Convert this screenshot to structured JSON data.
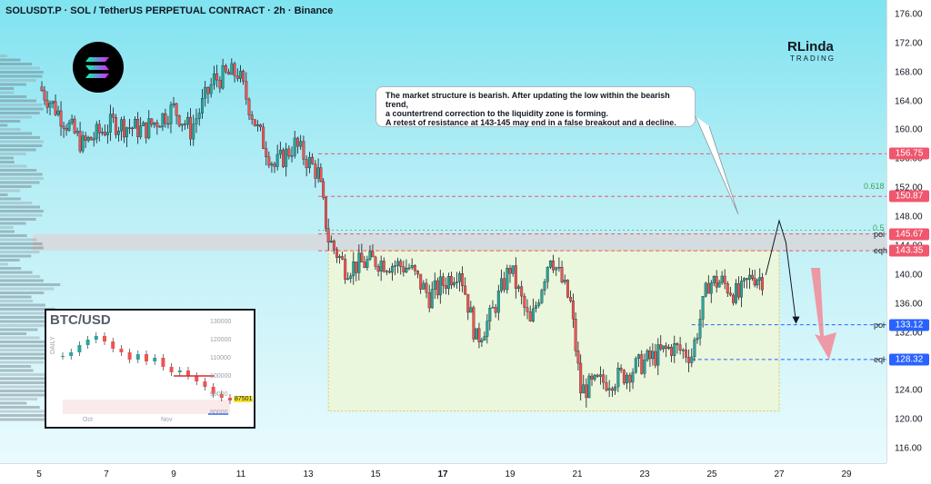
{
  "header": {
    "title": "SOLUSDT.P · SOL / TetherUS PERPETUAL CONTRACT · 2h · Binance"
  },
  "brand": {
    "line1": "RLinda",
    "line2": "TRADING"
  },
  "note": {
    "text_lines": [
      "The market structure is bearish. After updating the low within the bearish trend,",
      "a countertrend correction to the liquidity zone is forming.",
      "A retest of resistance at 143-145 may end in a false breakout and a decline."
    ]
  },
  "colors": {
    "bull": "#26a69a",
    "bear": "#ef5350",
    "level_red": "#f0566d",
    "level_blue": "#2962ff",
    "zone_fill": "#eaf7dc",
    "poi_band": "#d7d9dc"
  },
  "icons": {
    "logo": "solana-logo-icon",
    "arrow_down": "red-down-arrow-icon"
  },
  "chart_data": {
    "type": "candlestick",
    "title": "SOLUSDT.P · SOL / TetherUS PERPETUAL CONTRACT · 2h · Binance",
    "ylim": [
      114,
      178
    ],
    "y_ticks": [
      "176.00",
      "172.00",
      "168.00",
      "164.00",
      "160.00",
      "156.00",
      "152.00",
      "148.00",
      "144.00",
      "140.00",
      "136.00",
      "132.00",
      "128.00",
      "124.00",
      "120.00",
      "116.00"
    ],
    "x_ticks": [
      "5",
      "7",
      "9",
      "11",
      "13",
      "15",
      "17",
      "19",
      "21",
      "23",
      "25",
      "27",
      "29"
    ],
    "x_ticks_bold": [
      "17"
    ],
    "levels": [
      {
        "label": "156.75",
        "value": 156.75,
        "color": "red"
      },
      {
        "label": "150.87",
        "value": 150.87,
        "color": "red",
        "name": "0.618"
      },
      {
        "label": "145.67",
        "value": 145.67,
        "color": "red",
        "name": "poi"
      },
      {
        "label": "143.35",
        "value": 143.35,
        "color": "red",
        "name": "eqh"
      },
      {
        "label": "133.12",
        "value": 133.12,
        "color": "blue",
        "name": "poi"
      },
      {
        "label": "128.32",
        "value": 128.32,
        "color": "blue",
        "name": "eql"
      }
    ],
    "fib_labels": [
      {
        "label": "0.5",
        "value": 146.2
      }
    ],
    "key_points": [
      {
        "x": 5.0,
        "y": 166
      },
      {
        "x": 6.3,
        "y": 158
      },
      {
        "x": 7.2,
        "y": 161
      },
      {
        "x": 8.1,
        "y": 160
      },
      {
        "x": 9.0,
        "y": 163
      },
      {
        "x": 9.5,
        "y": 160
      },
      {
        "x": 10.2,
        "y": 167
      },
      {
        "x": 10.9,
        "y": 168
      },
      {
        "x": 11.5,
        "y": 160
      },
      {
        "x": 12.0,
        "y": 155
      },
      {
        "x": 12.6,
        "y": 158
      },
      {
        "x": 13.3,
        "y": 154
      },
      {
        "x": 13.6,
        "y": 145
      },
      {
        "x": 14.1,
        "y": 141
      },
      {
        "x": 15.0,
        "y": 142
      },
      {
        "x": 16.0,
        "y": 141
      },
      {
        "x": 16.6,
        "y": 137
      },
      {
        "x": 17.5,
        "y": 141
      },
      {
        "x": 18.0,
        "y": 131
      },
      {
        "x": 18.4,
        "y": 134
      },
      {
        "x": 19.0,
        "y": 141
      },
      {
        "x": 19.6,
        "y": 133
      },
      {
        "x": 20.2,
        "y": 143
      },
      {
        "x": 20.8,
        "y": 136
      },
      {
        "x": 21.1,
        "y": 124
      },
      {
        "x": 21.6,
        "y": 125
      },
      {
        "x": 22.3,
        "y": 126
      },
      {
        "x": 23.0,
        "y": 128
      },
      {
        "x": 23.8,
        "y": 130
      },
      {
        "x": 24.4,
        "y": 129
      },
      {
        "x": 24.9,
        "y": 139
      },
      {
        "x": 25.3,
        "y": 139
      },
      {
        "x": 25.8,
        "y": 137
      },
      {
        "x": 26.2,
        "y": 140
      },
      {
        "x": 26.5,
        "y": 139.5
      }
    ],
    "projection": [
      {
        "x": 26.6,
        "y": 140
      },
      {
        "x": 27.0,
        "y": 147.5
      },
      {
        "x": 27.2,
        "y": 144.5
      },
      {
        "x": 27.5,
        "y": 133.5
      }
    ]
  },
  "inset": {
    "title": "BTC/USD",
    "ylabel": "DAILY",
    "y_ticks": [
      "130000",
      "120000",
      "110000",
      "100000",
      "90000",
      "80000"
    ],
    "x_ticks": [
      "Oct",
      "Nov"
    ],
    "last_price": "87501",
    "series": [
      112000,
      114000,
      118000,
      121000,
      123000,
      120000,
      116000,
      114000,
      110000,
      113000,
      109000,
      111000,
      106000,
      103000,
      104000,
      101000,
      98000,
      95000,
      91000,
      89000,
      87501
    ]
  }
}
